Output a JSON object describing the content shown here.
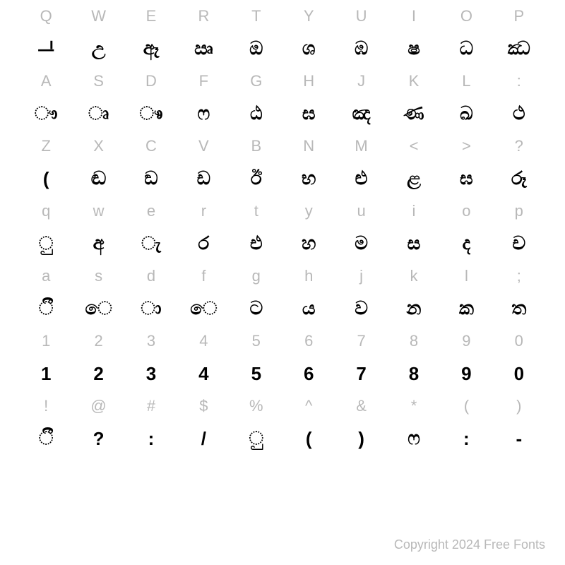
{
  "rows": [
    {
      "type": "label",
      "cells": [
        "Q",
        "W",
        "E",
        "R",
        "T",
        "Y",
        "U",
        "I",
        "O",
        "P"
      ]
    },
    {
      "type": "glyph",
      "cells": [
        "ᆜ",
        "උ",
        "ඈ",
        "ඍ",
        "ඔ",
        "ශ",
        "ඹ",
        "ෂ",
        "ධ",
        "ඣ"
      ]
    },
    {
      "type": "label",
      "cells": [
        "A",
        "S",
        "D",
        "F",
        "G",
        "H",
        "J",
        "K",
        "L",
        ":"
      ]
    },
    {
      "type": "glyph",
      "cells": [
        "ෟ",
        "ෘ",
        "ෳ",
        "ෆ",
        "ඨ",
        "ඝ",
        "ඤ",
        "ණ",
        "ඛ",
        "ථ"
      ]
    },
    {
      "type": "label",
      "cells": [
        "Z",
        "X",
        "C",
        "V",
        "B",
        "N",
        "M",
        "<",
        ">",
        "?"
      ]
    },
    {
      "type": "glyph",
      "cells": [
        "(",
        "ඬ",
        "ඞ",
        "ඩ",
        "ඊ",
        "භ",
        "ළු",
        "ළ",
        "ඝ",
        "රූ"
      ]
    },
    {
      "type": "label",
      "cells": [
        "q",
        "w",
        "e",
        "r",
        "t",
        "y",
        "u",
        "i",
        "o",
        "p"
      ]
    },
    {
      "type": "glyph",
      "cells": [
        "ු",
        "අ",
        "ැ",
        "ර",
        "එ",
        "හ",
        "ම",
        "ස",
        "ද",
        "ච"
      ]
    },
    {
      "type": "label",
      "cells": [
        "a",
        "s",
        "d",
        "f",
        "g",
        "h",
        "j",
        "k",
        "l",
        ";"
      ]
    },
    {
      "type": "glyph",
      "cells": [
        "ී",
        "ෙ",
        "ා",
        "ෙ",
        "ට",
        "ය",
        "ව",
        "න",
        "ක",
        "ත"
      ]
    },
    {
      "type": "label",
      "cells": [
        "1",
        "2",
        "3",
        "4",
        "5",
        "6",
        "7",
        "8",
        "9",
        "0"
      ]
    },
    {
      "type": "glyph",
      "cells": [
        "1",
        "2",
        "3",
        "4",
        "5",
        "6",
        "7",
        "8",
        "9",
        "0"
      ]
    },
    {
      "type": "label",
      "cells": [
        "!",
        "@",
        "#",
        "$",
        "%",
        "^",
        "&",
        "*",
        "(",
        ")"
      ]
    },
    {
      "type": "glyph",
      "cells": [
        "ී",
        "?",
        ":",
        "/",
        "ු",
        "(",
        ")",
        "ෆ",
        ":",
        "-"
      ]
    }
  ],
  "footer_text": "Copyright 2024 Free Fonts",
  "colors": {
    "label": "#b8b8b8",
    "glyph": "#000000",
    "background": "#ffffff"
  },
  "typography": {
    "label_fontsize": 22,
    "glyph_fontsize": 26,
    "footer_fontsize": 18
  }
}
